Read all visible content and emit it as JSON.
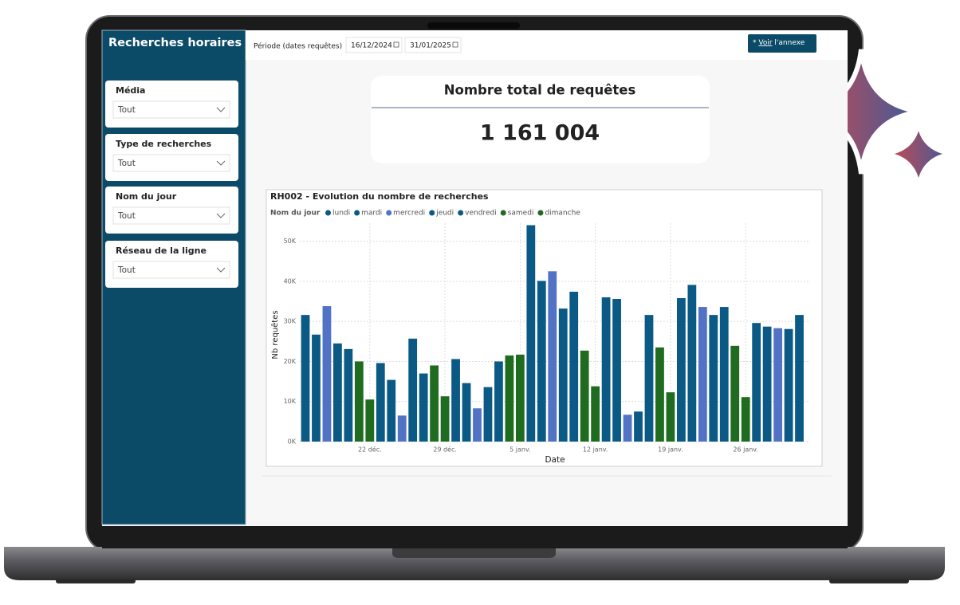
{
  "sidebar": {
    "title": "Recherches horaires",
    "filters": [
      {
        "label": "Média",
        "value": "Tout"
      },
      {
        "label": "Type de recherches",
        "value": "Tout"
      },
      {
        "label": "Nom du jour",
        "value": "Tout"
      },
      {
        "label": "Réseau de la ligne",
        "value": "Tout"
      }
    ]
  },
  "topbar": {
    "period_label": "Période (dates requêtes)",
    "start_date": "16/12/2024",
    "end_date": "31/01/2025",
    "button": {
      "star": "*",
      "link": "Voir",
      "text": "l'annexe"
    }
  },
  "kpi": {
    "title": "Nombre total de requêtes",
    "value": "1 161 004"
  },
  "chart_data": {
    "type": "bar",
    "title": "RH002 - Evolution du nombre de recherches",
    "legend_title": "Nom du jour",
    "xlabel": "Date",
    "ylabel": "Nb requêtes",
    "categories": [
      null,
      null,
      null,
      null,
      null,
      null,
      "22 déc.",
      null,
      null,
      null,
      null,
      null,
      null,
      "29 déc.",
      null,
      null,
      null,
      null,
      null,
      null,
      "5 janv.",
      null,
      null,
      null,
      null,
      null,
      null,
      "12 janv.",
      null,
      null,
      null,
      null,
      null,
      null,
      "19 janv.",
      null,
      null,
      null,
      null,
      null,
      null,
      "26 janv.",
      null,
      null,
      null,
      null,
      null
    ],
    "series": [
      {
        "name": "lundi",
        "color": "#0b5a86",
        "values": [
          31600,
          null,
          null,
          null,
          null,
          null,
          null,
          19600,
          null,
          null,
          null,
          null,
          null,
          null,
          20600,
          null,
          null,
          null,
          null,
          null,
          null,
          54000,
          null,
          null,
          null,
          null,
          null,
          null,
          36000,
          null,
          null,
          null,
          null,
          null,
          null,
          35800,
          null,
          null,
          null,
          null,
          null,
          null,
          29600,
          null,
          null,
          null,
          null
        ]
      },
      {
        "name": "mardi",
        "color": "#0b5a86",
        "values": [
          null,
          26700,
          null,
          null,
          null,
          null,
          null,
          null,
          15400,
          null,
          null,
          null,
          null,
          null,
          null,
          14600,
          null,
          null,
          null,
          null,
          null,
          null,
          40100,
          null,
          null,
          null,
          null,
          null,
          null,
          35600,
          null,
          null,
          null,
          null,
          null,
          null,
          39100,
          null,
          null,
          null,
          null,
          null,
          null,
          28700,
          null,
          null,
          null
        ]
      },
      {
        "name": "mercredi",
        "color": "#5272c6",
        "values": [
          null,
          null,
          33800,
          null,
          null,
          null,
          null,
          null,
          null,
          6500,
          null,
          null,
          null,
          null,
          null,
          null,
          8300,
          null,
          null,
          null,
          null,
          null,
          null,
          42500,
          null,
          null,
          null,
          null,
          null,
          null,
          6700,
          null,
          null,
          null,
          null,
          null,
          null,
          33600,
          null,
          null,
          null,
          null,
          null,
          null,
          28300,
          null,
          null
        ]
      },
      {
        "name": "jeudi",
        "color": "#0b5a86",
        "values": [
          null,
          null,
          null,
          24500,
          null,
          null,
          null,
          null,
          null,
          null,
          25700,
          null,
          null,
          null,
          null,
          null,
          null,
          13600,
          null,
          null,
          null,
          null,
          null,
          null,
          33200,
          null,
          null,
          null,
          null,
          null,
          null,
          7500,
          null,
          null,
          null,
          null,
          null,
          null,
          31600,
          null,
          null,
          null,
          null,
          null,
          null,
          28100,
          null
        ]
      },
      {
        "name": "vendredi",
        "color": "#0b5a86",
        "values": [
          null,
          null,
          null,
          null,
          23100,
          null,
          null,
          null,
          null,
          null,
          null,
          17000,
          null,
          null,
          null,
          null,
          null,
          null,
          20000,
          null,
          null,
          null,
          null,
          null,
          null,
          37400,
          null,
          null,
          null,
          null,
          null,
          null,
          31600,
          null,
          null,
          null,
          null,
          null,
          null,
          33600,
          null,
          null,
          null,
          null,
          null,
          null,
          31600
        ]
      },
      {
        "name": "samedi",
        "color": "#1f6b1f",
        "values": [
          null,
          null,
          null,
          null,
          null,
          20000,
          null,
          null,
          null,
          null,
          null,
          null,
          19000,
          null,
          null,
          null,
          null,
          null,
          null,
          21500,
          null,
          null,
          null,
          null,
          null,
          null,
          22700,
          null,
          null,
          null,
          null,
          null,
          null,
          23500,
          null,
          null,
          null,
          null,
          null,
          null,
          23900,
          null,
          null,
          null,
          null,
          null,
          null
        ]
      },
      {
        "name": "dimanche",
        "color": "#1f6b1f",
        "values": [
          null,
          null,
          null,
          null,
          null,
          null,
          10500,
          null,
          null,
          null,
          null,
          null,
          null,
          11300,
          null,
          null,
          null,
          null,
          null,
          null,
          21700,
          null,
          null,
          null,
          null,
          null,
          null,
          13800,
          null,
          null,
          null,
          null,
          null,
          null,
          12300,
          null,
          null,
          null,
          null,
          null,
          null,
          11100,
          null,
          null,
          null,
          null,
          null
        ]
      }
    ],
    "ylim": [
      0,
      54500
    ],
    "yticks": [
      {
        "value": 0,
        "label": "0K"
      },
      {
        "value": 10000,
        "label": "10K"
      },
      {
        "value": 20000,
        "label": "20K"
      },
      {
        "value": 30000,
        "label": "30K"
      },
      {
        "value": 40000,
        "label": "40K"
      },
      {
        "value": 50000,
        "label": "50K"
      }
    ],
    "grid": true
  }
}
